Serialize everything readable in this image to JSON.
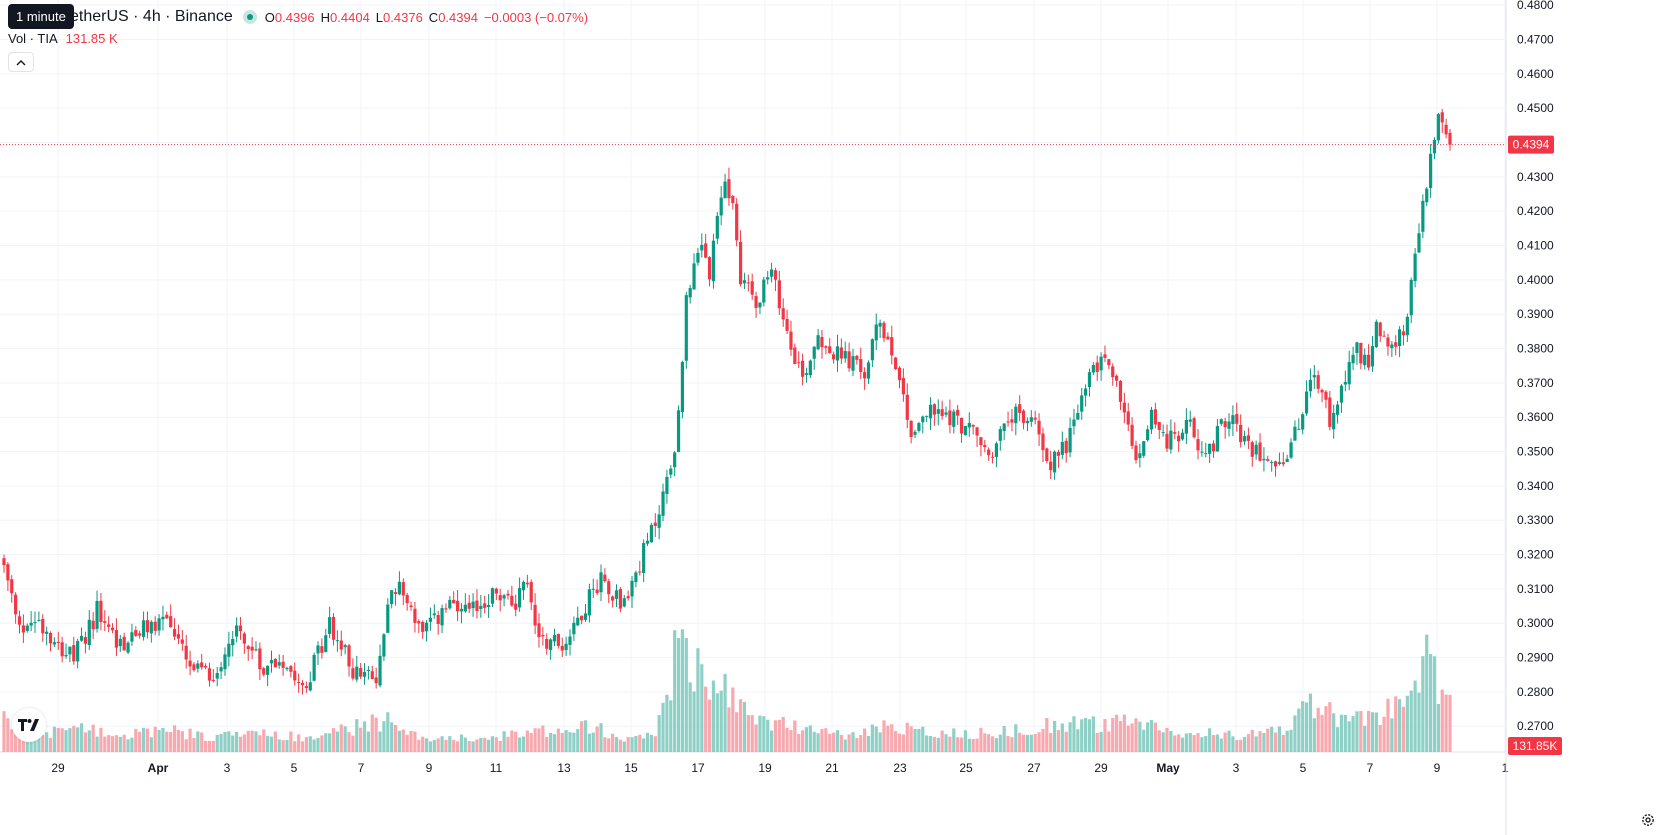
{
  "header": {
    "tooltip": "1 minute",
    "symbol_title": "etherUS · 4h · Binance",
    "ohlc": {
      "o_label": "O",
      "o_value": "0.4396",
      "h_label": "H",
      "h_value": "0.4404",
      "l_label": "L",
      "l_value": "0.4376",
      "c_label": "C",
      "c_value": "0.4394"
    },
    "change": "−0.0003 (−0.07%)",
    "volume_label": "Vol · TIA",
    "volume_value": "131.85 K"
  },
  "icons": {
    "collapse": "chevron-up-icon",
    "logo": "tradingview-logo",
    "settings": "gear-icon"
  },
  "colors": {
    "up": "#089981",
    "down": "#f23645",
    "up_volume": "#8fd0c6",
    "down_volume": "#f7a9af",
    "price_line": "#f23645",
    "grid": "#f0f3fa"
  },
  "chart_data": {
    "type": "candlestick",
    "y_ticks": [
      "0.4800",
      "0.4700",
      "0.4600",
      "0.4500",
      "0.4400",
      "0.4300",
      "0.4200",
      "0.4100",
      "0.4000",
      "0.3900",
      "0.3800",
      "0.3700",
      "0.3600",
      "0.3500",
      "0.3400",
      "0.3300",
      "0.3200",
      "0.3100",
      "0.3000",
      "0.2900",
      "0.2800",
      "0.2700"
    ],
    "ylim": [
      0.2625,
      0.4815
    ],
    "x_ticks": [
      "29",
      "Apr",
      "3",
      "5",
      "7",
      "9",
      "11",
      "13",
      "15",
      "17",
      "19",
      "21",
      "23",
      "25",
      "27",
      "29",
      "May",
      "3",
      "5",
      "7",
      "9",
      "1"
    ],
    "last_price": "0.4394",
    "last_volume": "131.85K",
    "anchors": [
      {
        "i": 0,
        "p": 0.316
      },
      {
        "i": 4,
        "p": 0.2975
      },
      {
        "i": 8,
        "p": 0.302
      },
      {
        "i": 14,
        "p": 0.2945
      },
      {
        "i": 18,
        "p": 0.2895
      },
      {
        "i": 24,
        "p": 0.3035
      },
      {
        "i": 30,
        "p": 0.2935
      },
      {
        "i": 36,
        "p": 0.298
      },
      {
        "i": 42,
        "p": 0.302
      },
      {
        "i": 48,
        "p": 0.2865
      },
      {
        "i": 54,
        "p": 0.2845
      },
      {
        "i": 60,
        "p": 0.2995
      },
      {
        "i": 66,
        "p": 0.2875
      },
      {
        "i": 72,
        "p": 0.2895
      },
      {
        "i": 78,
        "p": 0.2825
      },
      {
        "i": 84,
        "p": 0.2995
      },
      {
        "i": 90,
        "p": 0.2865
      },
      {
        "i": 96,
        "p": 0.2825
      },
      {
        "i": 100,
        "p": 0.3125
      },
      {
        "i": 104,
        "p": 0.307
      },
      {
        "i": 108,
        "p": 0.2965
      },
      {
        "i": 114,
        "p": 0.3045
      },
      {
        "i": 120,
        "p": 0.3025
      },
      {
        "i": 126,
        "p": 0.3085
      },
      {
        "i": 132,
        "p": 0.3055
      },
      {
        "i": 134,
        "p": 0.3145
      },
      {
        "i": 138,
        "p": 0.2965
      },
      {
        "i": 144,
        "p": 0.2935
      },
      {
        "i": 150,
        "p": 0.3055
      },
      {
        "i": 154,
        "p": 0.3135
      },
      {
        "i": 160,
        "p": 0.3055
      },
      {
        "i": 164,
        "p": 0.3175
      },
      {
        "i": 168,
        "p": 0.3295
      },
      {
        "i": 172,
        "p": 0.3455
      },
      {
        "i": 174,
        "p": 0.3595
      },
      {
        "i": 176,
        "p": 0.3965
      },
      {
        "i": 180,
        "p": 0.4085
      },
      {
        "i": 182,
        "p": 0.4015
      },
      {
        "i": 186,
        "p": 0.4305
      },
      {
        "i": 188,
        "p": 0.4205
      },
      {
        "i": 190,
        "p": 0.4015
      },
      {
        "i": 194,
        "p": 0.3945
      },
      {
        "i": 198,
        "p": 0.4015
      },
      {
        "i": 202,
        "p": 0.3855
      },
      {
        "i": 206,
        "p": 0.3715
      },
      {
        "i": 210,
        "p": 0.3845
      },
      {
        "i": 214,
        "p": 0.3785
      },
      {
        "i": 218,
        "p": 0.3765
      },
      {
        "i": 222,
        "p": 0.3725
      },
      {
        "i": 226,
        "p": 0.3885
      },
      {
        "i": 230,
        "p": 0.3765
      },
      {
        "i": 234,
        "p": 0.3555
      },
      {
        "i": 238,
        "p": 0.3615
      },
      {
        "i": 244,
        "p": 0.3605
      },
      {
        "i": 250,
        "p": 0.3555
      },
      {
        "i": 254,
        "p": 0.3485
      },
      {
        "i": 260,
        "p": 0.3605
      },
      {
        "i": 266,
        "p": 0.3585
      },
      {
        "i": 270,
        "p": 0.3465
      },
      {
        "i": 274,
        "p": 0.3525
      },
      {
        "i": 280,
        "p": 0.3715
      },
      {
        "i": 284,
        "p": 0.3785
      },
      {
        "i": 288,
        "p": 0.3655
      },
      {
        "i": 292,
        "p": 0.3465
      },
      {
        "i": 296,
        "p": 0.3615
      },
      {
        "i": 300,
        "p": 0.3525
      },
      {
        "i": 306,
        "p": 0.3575
      },
      {
        "i": 310,
        "p": 0.3485
      },
      {
        "i": 316,
        "p": 0.3615
      },
      {
        "i": 320,
        "p": 0.3515
      },
      {
        "i": 326,
        "p": 0.3495
      },
      {
        "i": 330,
        "p": 0.3465
      },
      {
        "i": 334,
        "p": 0.3575
      },
      {
        "i": 338,
        "p": 0.3735
      },
      {
        "i": 342,
        "p": 0.3585
      },
      {
        "i": 348,
        "p": 0.3805
      },
      {
        "i": 352,
        "p": 0.3765
      },
      {
        "i": 354,
        "p": 0.3875
      },
      {
        "i": 358,
        "p": 0.3785
      },
      {
        "i": 362,
        "p": 0.3895
      },
      {
        "i": 364,
        "p": 0.4055
      },
      {
        "i": 366,
        "p": 0.4215
      },
      {
        "i": 368,
        "p": 0.4355
      },
      {
        "i": 370,
        "p": 0.4465
      },
      {
        "i": 372,
        "p": 0.4405
      },
      {
        "i": 373,
        "p": 0.4394
      }
    ],
    "volume_peaks": [
      {
        "i": 0,
        "v": 0.6
      },
      {
        "i": 10,
        "v": 0.4
      },
      {
        "i": 24,
        "v": 0.45
      },
      {
        "i": 30,
        "v": 0.3
      },
      {
        "i": 40,
        "v": 0.45
      },
      {
        "i": 52,
        "v": 0.3
      },
      {
        "i": 60,
        "v": 0.35
      },
      {
        "i": 80,
        "v": 0.3
      },
      {
        "i": 100,
        "v": 0.65
      },
      {
        "i": 102,
        "v": 0.35
      },
      {
        "i": 120,
        "v": 0.25
      },
      {
        "i": 134,
        "v": 0.35
      },
      {
        "i": 150,
        "v": 0.55
      },
      {
        "i": 160,
        "v": 0.3
      },
      {
        "i": 168,
        "v": 0.35
      },
      {
        "i": 172,
        "v": 1.3
      },
      {
        "i": 174,
        "v": 3.0
      },
      {
        "i": 176,
        "v": 2.1
      },
      {
        "i": 178,
        "v": 1.7
      },
      {
        "i": 180,
        "v": 1.35
      },
      {
        "i": 182,
        "v": 1.2
      },
      {
        "i": 186,
        "v": 1.3
      },
      {
        "i": 188,
        "v": 1.15
      },
      {
        "i": 194,
        "v": 0.55
      },
      {
        "i": 200,
        "v": 0.6
      },
      {
        "i": 206,
        "v": 0.45
      },
      {
        "i": 218,
        "v": 0.3
      },
      {
        "i": 230,
        "v": 0.55
      },
      {
        "i": 240,
        "v": 0.35
      },
      {
        "i": 260,
        "v": 0.4
      },
      {
        "i": 276,
        "v": 0.6
      },
      {
        "i": 280,
        "v": 0.55
      },
      {
        "i": 290,
        "v": 0.55
      },
      {
        "i": 300,
        "v": 0.45
      },
      {
        "i": 320,
        "v": 0.3
      },
      {
        "i": 330,
        "v": 0.45
      },
      {
        "i": 334,
        "v": 0.85
      },
      {
        "i": 338,
        "v": 0.9
      },
      {
        "i": 342,
        "v": 0.75
      },
      {
        "i": 346,
        "v": 0.65
      },
      {
        "i": 350,
        "v": 0.7
      },
      {
        "i": 356,
        "v": 0.8
      },
      {
        "i": 362,
        "v": 0.85
      },
      {
        "i": 366,
        "v": 1.8
      },
      {
        "i": 368,
        "v": 1.95
      },
      {
        "i": 370,
        "v": 1.0
      },
      {
        "i": 373,
        "v": 0.85
      }
    ]
  }
}
